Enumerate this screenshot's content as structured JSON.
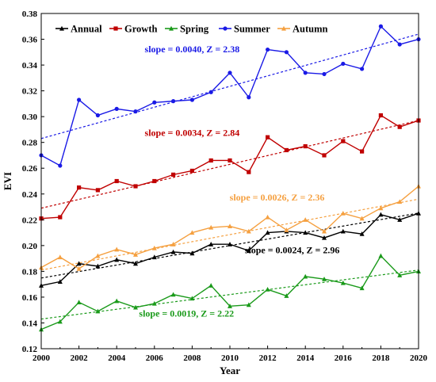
{
  "chart_data": {
    "type": "line",
    "xlabel": "Year",
    "ylabel": "EVI",
    "xlim": [
      2000,
      2020
    ],
    "ylim": [
      0.12,
      0.38
    ],
    "x_ticks": [
      2000,
      2002,
      2004,
      2006,
      2008,
      2010,
      2012,
      2014,
      2016,
      2018,
      2020
    ],
    "y_ticks": [
      "0.12",
      "0.14",
      "0.16",
      "0.18",
      "0.20",
      "0.22",
      "0.24",
      "0.26",
      "0.28",
      "0.30",
      "0.32",
      "0.34",
      "0.36",
      "0.38"
    ],
    "grid": false,
    "legend_position": "top-left",
    "x": [
      2000,
      2001,
      2002,
      2003,
      2004,
      2005,
      2006,
      2007,
      2008,
      2009,
      2010,
      2011,
      2012,
      2013,
      2014,
      2015,
      2016,
      2017,
      2018,
      2019,
      2020
    ],
    "series": [
      {
        "name": "Annual",
        "color": "#000000",
        "marker": "triangle",
        "values": [
          0.169,
          0.172,
          0.186,
          0.184,
          0.189,
          0.186,
          0.191,
          0.195,
          0.194,
          0.201,
          0.201,
          0.196,
          0.21,
          0.211,
          0.21,
          0.206,
          0.211,
          0.209,
          0.224,
          0.22,
          0.225
        ],
        "trend": [
          0.1748,
          0.2252
        ]
      },
      {
        "name": "Growth",
        "color": "#c00000",
        "marker": "square",
        "values": [
          0.221,
          0.222,
          0.245,
          0.243,
          0.25,
          0.246,
          0.25,
          0.255,
          0.258,
          0.266,
          0.266,
          0.257,
          0.284,
          0.274,
          0.277,
          0.27,
          0.281,
          0.273,
          0.301,
          0.292,
          0.297
        ],
        "trend": [
          0.229,
          0.297
        ]
      },
      {
        "name": "Spring",
        "color": "#1a9a1a",
        "marker": "triangle",
        "values": [
          0.135,
          0.141,
          0.156,
          0.149,
          0.157,
          0.152,
          0.155,
          0.162,
          0.159,
          0.169,
          0.153,
          0.154,
          0.166,
          0.161,
          0.176,
          0.174,
          0.171,
          0.167,
          0.192,
          0.177,
          0.18
        ],
        "trend": [
          0.143,
          0.181
        ]
      },
      {
        "name": "Summer",
        "color": "#1a1ae6",
        "marker": "circle",
        "values": [
          0.27,
          0.262,
          0.313,
          0.301,
          0.306,
          0.304,
          0.311,
          0.312,
          0.313,
          0.319,
          0.334,
          0.315,
          0.352,
          0.35,
          0.334,
          0.333,
          0.341,
          0.337,
          0.37,
          0.356,
          0.36
        ],
        "trend": [
          0.283,
          0.364
        ]
      },
      {
        "name": "Autumn",
        "color": "#f5a040",
        "marker": "triangle",
        "values": [
          0.183,
          0.191,
          0.182,
          0.192,
          0.197,
          0.193,
          0.198,
          0.201,
          0.21,
          0.214,
          0.215,
          0.211,
          0.222,
          0.212,
          0.22,
          0.211,
          0.225,
          0.221,
          0.229,
          0.234,
          0.246
        ],
        "trend": [
          0.181,
          0.236
        ]
      }
    ],
    "annotations": [
      {
        "text": "slope = 0.0040, Z = 2.38",
        "color": "#1a1ae6",
        "x": 2008.0,
        "y": 0.35
      },
      {
        "text": "slope = 0.0034, Z = 2.84",
        "color": "#c00000",
        "x": 2008.0,
        "y": 0.285
      },
      {
        "text": "slope = 0.0026, Z = 2.36",
        "color": "#f5a040",
        "x": 2012.5,
        "y": 0.235
      },
      {
        "text": "slope = 0.0024, Z = 2.96",
        "color": "#000000",
        "x": 2013.3,
        "y": 0.194
      },
      {
        "text": "slope = 0.0019, Z = 2.22",
        "color": "#1a9a1a",
        "x": 2007.7,
        "y": 0.145
      }
    ]
  }
}
